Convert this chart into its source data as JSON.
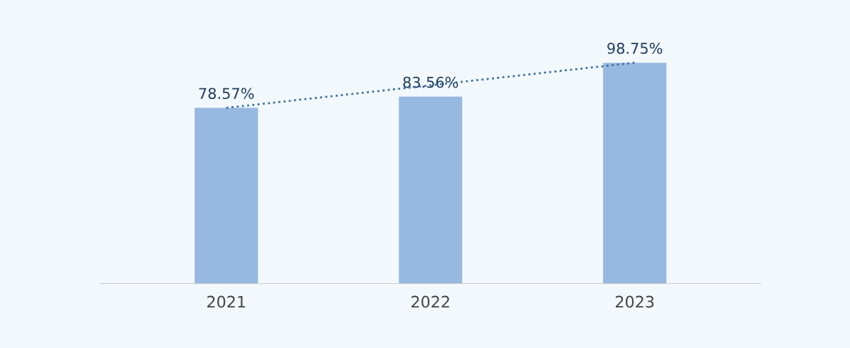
{
  "chart_data": {
    "type": "bar",
    "categories": [
      "2021",
      "2022",
      "2023"
    ],
    "series": [
      {
        "color": "#97b8e0",
        "values": [
          78.57,
          83.56,
          98.75
        ],
        "value_labels": [
          "78.57%",
          "83.56%",
          "98.75%"
        ]
      },
      {
        "type": "line",
        "color": "#3d6fa8",
        "values": [
          78.57,
          null,
          98.75
        ],
        "line_style": "dotted",
        "marker": "none"
      }
    ],
    "tick_labels": "x"
  }
}
